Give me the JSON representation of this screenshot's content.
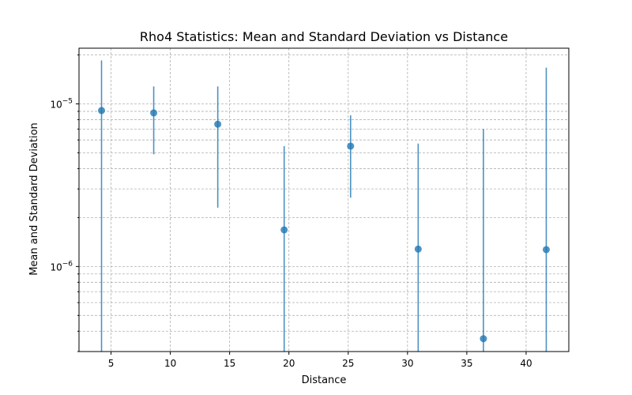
{
  "chart_data": {
    "type": "scatter",
    "title": "Rho4 Statistics: Mean and Standard Deviation vs Distance",
    "xlabel": "Distance",
    "ylabel": "Mean and Standard Deviation",
    "xlim": [
      2.3,
      43.6
    ],
    "ylim": [
      3e-07,
      2.2e-05
    ],
    "yscale": "log",
    "grid": true,
    "x_ticks": [
      5,
      10,
      15,
      20,
      25,
      30,
      35,
      40
    ],
    "x_tick_labels": [
      "5",
      "10",
      "15",
      "20",
      "25",
      "30",
      "35",
      "40"
    ],
    "y_ticks": [
      1e-06,
      1e-05
    ],
    "y_tick_labels": [
      {
        "base": "10",
        "exp": "−6"
      },
      {
        "base": "10",
        "exp": "−5"
      }
    ],
    "series": [
      {
        "color": "#1f77b4",
        "points": [
          {
            "x": 4.2,
            "y": 9.1e-06,
            "err_low": 3e-07,
            "err_high": 1.85e-05
          },
          {
            "x": 8.6,
            "y": 8.8e-06,
            "err_low": 4.9e-06,
            "err_high": 1.28e-05
          },
          {
            "x": 14.0,
            "y": 7.5e-06,
            "err_low": 2.3e-06,
            "err_high": 1.28e-05
          },
          {
            "x": 19.6,
            "y": 1.68e-06,
            "err_low": 3e-07,
            "err_high": 5.5e-06
          },
          {
            "x": 25.2,
            "y": 5.5e-06,
            "err_low": 2.65e-06,
            "err_high": 8.5e-06
          },
          {
            "x": 30.9,
            "y": 1.28e-06,
            "err_low": 3e-07,
            "err_high": 5.7e-06
          },
          {
            "x": 36.4,
            "y": 3.6e-07,
            "err_low": 3e-07,
            "err_high": 7e-06
          },
          {
            "x": 41.7,
            "y": 1.27e-06,
            "err_low": 3e-07,
            "err_high": 1.67e-05
          }
        ]
      }
    ]
  }
}
